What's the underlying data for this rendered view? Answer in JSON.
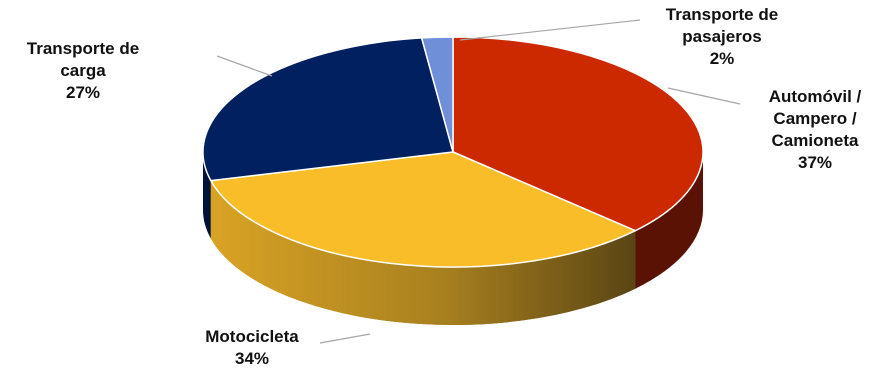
{
  "chart_data": {
    "type": "pie",
    "title": "",
    "style": "3d",
    "slices": [
      {
        "name": "Automóvil / Campero / Camioneta",
        "value": 37,
        "label_lines": [
          "Automóvil /",
          "Campero /",
          "Camioneta"
        ],
        "pct_label": "37%",
        "color": "#cc2900",
        "side_color": "#5a1204"
      },
      {
        "name": "Motocicleta",
        "value": 34,
        "label_lines": [
          "Motocicleta"
        ],
        "pct_label": "34%",
        "color": "#f8bd28",
        "side_color": "#c99a1a"
      },
      {
        "name": "Transporte de carga",
        "value": 27,
        "label_lines": [
          "Transporte de",
          "carga"
        ],
        "pct_label": "27%",
        "color": "#002060",
        "side_color": "#001238"
      },
      {
        "name": "Transporte de pasajeros",
        "value": 2,
        "label_lines": [
          "Transporte de",
          "pasajeros"
        ],
        "pct_label": "2%",
        "color": "#6f8fd8",
        "side_color": "#3c5aa0"
      }
    ],
    "legend": "none"
  }
}
